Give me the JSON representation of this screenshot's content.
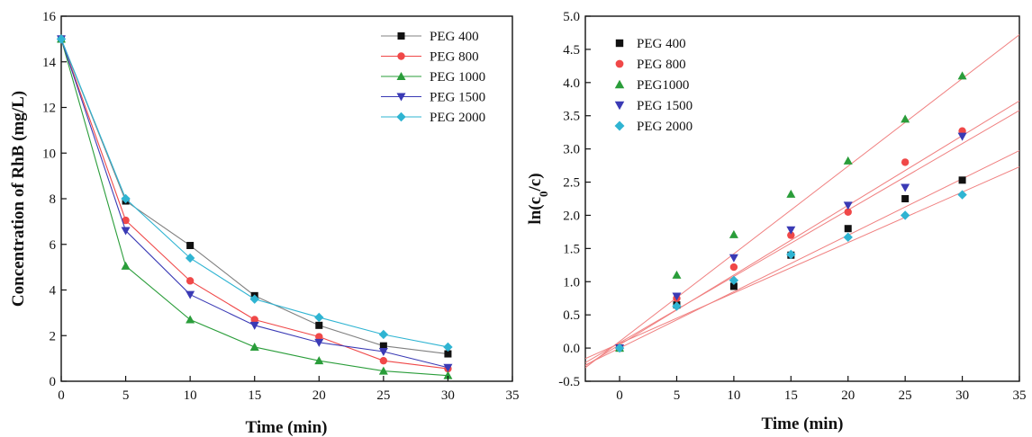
{
  "chart_data": [
    {
      "type": "line",
      "title": "",
      "xlabel": "Time (min)",
      "ylabel": "Concentration of  RhB (mg/L)",
      "xlim": [
        0,
        35
      ],
      "ylim": [
        0,
        16
      ],
      "xticks": [
        0,
        5,
        10,
        15,
        20,
        25,
        30,
        35
      ],
      "yticks": [
        0,
        2,
        4,
        6,
        8,
        10,
        12,
        14,
        16
      ],
      "legend": "top-right",
      "grid": false,
      "x": [
        0,
        5,
        10,
        15,
        20,
        25,
        30
      ],
      "series": [
        {
          "name": "PEG 400",
          "color": "#808080",
          "marker": "square",
          "values": [
            15.0,
            7.9,
            5.95,
            3.75,
            2.45,
            1.55,
            1.2
          ]
        },
        {
          "name": "PEG 800",
          "color": "#f04848",
          "marker": "circle",
          "values": [
            15.0,
            7.05,
            4.4,
            2.7,
            1.95,
            0.9,
            0.55
          ]
        },
        {
          "name": "PEG 1000",
          "color": "#2a9d3a",
          "marker": "triangle",
          "values": [
            15.0,
            5.05,
            2.7,
            1.5,
            0.9,
            0.45,
            0.25
          ]
        },
        {
          "name": "PEG 1500",
          "color": "#3a3ab5",
          "marker": "tri-down",
          "values": [
            15.0,
            6.6,
            3.8,
            2.45,
            1.7,
            1.3,
            0.6
          ]
        },
        {
          "name": "PEG 2000",
          "color": "#2fb4d2",
          "marker": "diamond",
          "values": [
            15.0,
            8.0,
            5.4,
            3.6,
            2.8,
            2.05,
            1.5
          ]
        }
      ]
    },
    {
      "type": "scatter",
      "title": "",
      "xlabel": "Time (min)",
      "ylabel": "ln(c0/c)",
      "xlim": [
        -3,
        35
      ],
      "ylim": [
        -0.5,
        5.0
      ],
      "xticks": [
        0,
        5,
        10,
        15,
        20,
        25,
        30,
        35
      ],
      "yticks": [
        -0.5,
        0.0,
        0.5,
        1.0,
        1.5,
        2.0,
        2.5,
        3.0,
        3.5,
        4.0,
        4.5,
        5.0
      ],
      "legend": "top-left",
      "grid": false,
      "fit_color": "#f08080",
      "x": [
        0,
        5,
        10,
        15,
        20,
        25,
        30
      ],
      "series": [
        {
          "name": "PEG 400",
          "color": "#111111",
          "marker": "square",
          "values": [
            0.0,
            0.65,
            0.93,
            1.4,
            1.8,
            2.25,
            2.53
          ],
          "fit": [
            0.0,
            0.085
          ]
        },
        {
          "name": "PEG 800",
          "color": "#f04848",
          "marker": "circle",
          "values": [
            0.0,
            0.75,
            1.22,
            1.7,
            2.05,
            2.8,
            3.27
          ],
          "fit": [
            0.05,
            0.105
          ]
        },
        {
          "name": "PEG1000",
          "color": "#2a9d3a",
          "marker": "triangle",
          "values": [
            0.0,
            1.1,
            1.71,
            2.32,
            2.82,
            3.45,
            4.1
          ],
          "fit": [
            0.1,
            0.132
          ]
        },
        {
          "name": "PEG 1500",
          "color": "#3a3ab5",
          "marker": "tri-down",
          "values": [
            0.0,
            0.78,
            1.36,
            1.78,
            2.15,
            2.42,
            3.19
          ],
          "fit": [
            0.08,
            0.1
          ]
        },
        {
          "name": "PEG 2000",
          "color": "#2fb4d2",
          "marker": "diamond",
          "values": [
            0.0,
            0.63,
            1.02,
            1.41,
            1.67,
            2.0,
            2.31
          ],
          "fit": [
            0.07,
            0.076
          ]
        }
      ]
    }
  ]
}
